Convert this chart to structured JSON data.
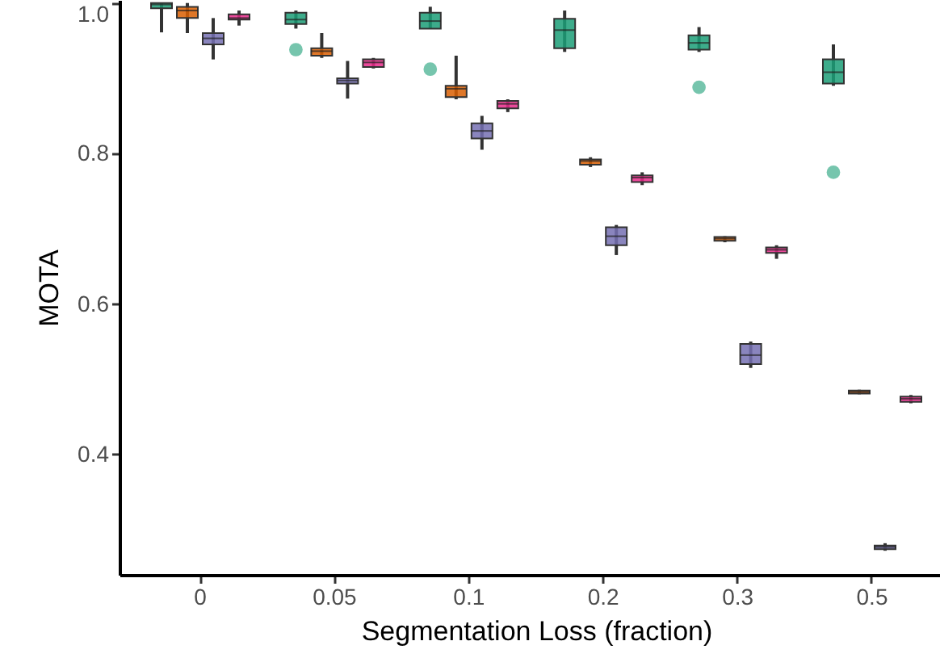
{
  "chart_data": {
    "type": "box",
    "xlabel": "Segmentation Loss (fraction)",
    "ylabel": "MOTA",
    "categories": [
      "0",
      "0.05",
      "0.1",
      "0.2",
      "0.3",
      "0.5"
    ],
    "ylim": [
      0.24,
      1.004
    ],
    "yticks": [
      0.4,
      0.6,
      0.8,
      {
        "value": 1,
        "label": "1.0"
      }
    ],
    "grid": false,
    "legend": false,
    "series": [
      {
        "color": "#1b9e77",
        "boxes": [
          {
            "low": 0.961,
            "q1": 0.993,
            "median": 0.998,
            "q3": 1.0,
            "high": 1.0
          },
          {
            "low": 0.966,
            "q1": 0.972,
            "median": 0.978,
            "q3": 0.987,
            "high": 0.99,
            "outliers": [
              0.938
            ]
          },
          {
            "low": 0.966,
            "q1": 0.966,
            "median": 0.976,
            "q3": 0.987,
            "high": 0.995,
            "outliers": [
              0.912
            ]
          },
          {
            "low": 0.935,
            "q1": 0.94,
            "median": 0.964,
            "q3": 0.979,
            "high": 0.99
          },
          {
            "low": 0.935,
            "q1": 0.938,
            "median": 0.947,
            "q3": 0.957,
            "high": 0.968,
            "outliers": [
              0.888
            ]
          },
          {
            "low": 0.89,
            "q1": 0.893,
            "median": 0.908,
            "q3": 0.925,
            "high": 0.945,
            "outliers": [
              0.775
            ]
          }
        ]
      },
      {
        "color": "#d95f02",
        "boxes": [
          {
            "low": 0.96,
            "q1": 0.98,
            "median": 0.99,
            "q3": 0.995,
            "high": 1.0
          },
          {
            "low": 0.927,
            "q1": 0.93,
            "median": 0.936,
            "q3": 0.94,
            "high": 0.96
          },
          {
            "low": 0.872,
            "q1": 0.875,
            "median": 0.886,
            "q3": 0.89,
            "high": 0.93
          },
          {
            "low": 0.782,
            "q1": 0.785,
            "median": 0.79,
            "q3": 0.792,
            "high": 0.795
          },
          {
            "low": 0.682,
            "q1": 0.684,
            "median": 0.687,
            "q3": 0.689,
            "high": 0.69
          },
          {
            "low": 0.48,
            "q1": 0.481,
            "median": 0.483,
            "q3": 0.485,
            "high": 0.486
          }
        ]
      },
      {
        "color": "#7570b3",
        "boxes": [
          {
            "low": 0.925,
            "q1": 0.945,
            "median": 0.953,
            "q3": 0.96,
            "high": 0.98
          },
          {
            "low": 0.873,
            "q1": 0.893,
            "median": 0.897,
            "q3": 0.9,
            "high": 0.923
          },
          {
            "low": 0.805,
            "q1": 0.82,
            "median": 0.83,
            "q3": 0.84,
            "high": 0.85
          },
          {
            "low": 0.665,
            "q1": 0.678,
            "median": 0.69,
            "q3": 0.702,
            "high": 0.705
          },
          {
            "low": 0.515,
            "q1": 0.52,
            "median": 0.532,
            "q3": 0.547,
            "high": 0.55
          },
          {
            "low": 0.272,
            "q1": 0.274,
            "median": 0.277,
            "q3": 0.279,
            "high": 0.282
          }
        ]
      },
      {
        "color": "#e7298a",
        "boxes": [
          {
            "low": 0.97,
            "q1": 0.978,
            "median": 0.98,
            "q3": 0.985,
            "high": 0.99
          },
          {
            "low": 0.913,
            "q1": 0.915,
            "median": 0.921,
            "q3": 0.925,
            "high": 0.927
          },
          {
            "low": 0.855,
            "q1": 0.86,
            "median": 0.866,
            "q3": 0.87,
            "high": 0.872
          },
          {
            "low": 0.758,
            "q1": 0.762,
            "median": 0.768,
            "q3": 0.771,
            "high": 0.775
          },
          {
            "low": 0.66,
            "q1": 0.668,
            "median": 0.672,
            "q3": 0.675,
            "high": 0.678
          },
          {
            "low": 0.468,
            "q1": 0.47,
            "median": 0.474,
            "q3": 0.477,
            "high": 0.479
          }
        ]
      }
    ]
  }
}
